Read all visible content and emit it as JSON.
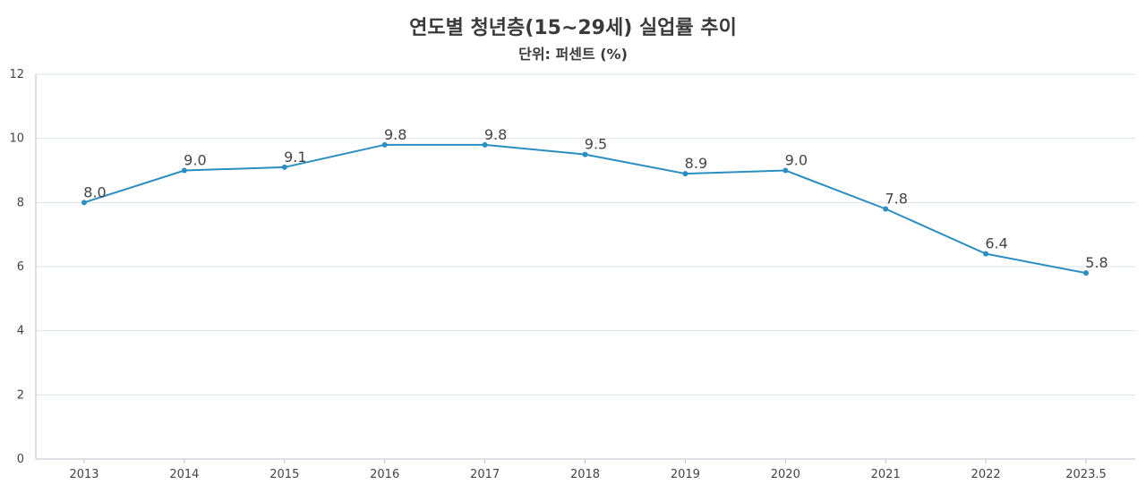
{
  "chart_data": {
    "type": "line",
    "title": "연도별 청년층(15~29세) 실업률 추이",
    "subtitle": "단위: 퍼센트 (%)",
    "categories": [
      "2013",
      "2014",
      "2015",
      "2016",
      "2017",
      "2018",
      "2019",
      "2020",
      "2021",
      "2022",
      "2023.5"
    ],
    "values": [
      8.0,
      9.0,
      9.1,
      9.8,
      9.8,
      9.5,
      8.9,
      9.0,
      7.8,
      6.4,
      5.8
    ],
    "data_labels": [
      "8.0",
      "9.0",
      "9.1",
      "9.8",
      "9.8",
      "9.5",
      "8.9",
      "9.0",
      "7.8",
      "6.4",
      "5.8"
    ],
    "yticks": [
      "0",
      "2",
      "4",
      "6",
      "8",
      "10",
      "12"
    ],
    "ylim": [
      0,
      12
    ],
    "grid": true,
    "legend": "none",
    "colors": {
      "line": "#2a8fc0",
      "grid": "#dde3e8",
      "text": "#3a3a3a"
    }
  }
}
